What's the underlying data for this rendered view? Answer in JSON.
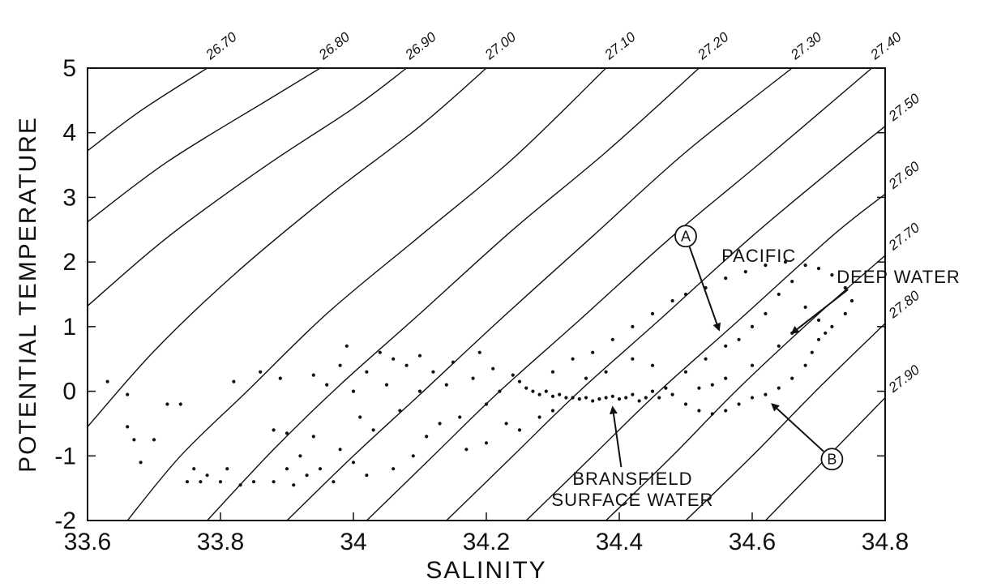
{
  "chart_data": {
    "type": "scatter",
    "title": "",
    "xlabel": "SALINITY",
    "ylabel": "POTENTIAL TEMPERATURE",
    "xlim": [
      33.6,
      34.8
    ],
    "ylim": [
      -2,
      5
    ],
    "x_ticks": [
      {
        "value": 33.6,
        "label": "33.6"
      },
      {
        "value": 33.8,
        "label": "33.8"
      },
      {
        "value": 34.0,
        "label": "34"
      },
      {
        "value": 34.2,
        "label": "34.2"
      },
      {
        "value": 34.4,
        "label": "34.4"
      },
      {
        "value": 34.6,
        "label": "34.6"
      },
      {
        "value": 34.8,
        "label": "34.8"
      }
    ],
    "y_ticks": [
      {
        "value": -2,
        "label": "-2"
      },
      {
        "value": -1,
        "label": "-1"
      },
      {
        "value": 0,
        "label": "0"
      },
      {
        "value": 1,
        "label": "1"
      },
      {
        "value": 2,
        "label": "2"
      },
      {
        "value": 3,
        "label": "3"
      },
      {
        "value": 4,
        "label": "4"
      },
      {
        "value": 5,
        "label": "5"
      }
    ],
    "density_contours": [
      {
        "label": "26.70",
        "points": [
          [
            33.6,
            3.72
          ],
          [
            33.68,
            4.34
          ],
          [
            33.78,
            5.0
          ]
        ]
      },
      {
        "label": "26.80",
        "points": [
          [
            33.6,
            2.62
          ],
          [
            33.72,
            3.55
          ],
          [
            33.87,
            4.5
          ],
          [
            33.95,
            5.0
          ]
        ]
      },
      {
        "label": "26.90",
        "points": [
          [
            33.6,
            1.32
          ],
          [
            33.72,
            2.38
          ],
          [
            33.87,
            3.5
          ],
          [
            34.0,
            4.38
          ],
          [
            34.08,
            5.0
          ]
        ]
      },
      {
        "label": "27.00",
        "points": [
          [
            33.6,
            -0.55
          ],
          [
            33.7,
            0.62
          ],
          [
            33.82,
            1.8
          ],
          [
            33.96,
            3.0
          ],
          [
            34.1,
            4.1
          ],
          [
            34.2,
            5.0
          ]
        ]
      },
      {
        "label": "27.10",
        "points": [
          [
            33.66,
            -2.0
          ],
          [
            33.74,
            -1.0
          ],
          [
            33.84,
            0.0
          ],
          [
            33.96,
            1.2
          ],
          [
            34.1,
            2.4
          ],
          [
            34.24,
            3.6
          ],
          [
            34.38,
            5.0
          ]
        ]
      },
      {
        "label": "27.20",
        "points": [
          [
            33.78,
            -2.0
          ],
          [
            33.88,
            -0.9
          ],
          [
            33.98,
            0.1
          ],
          [
            34.1,
            1.2
          ],
          [
            34.24,
            2.5
          ],
          [
            34.38,
            3.7
          ],
          [
            34.52,
            5.0
          ]
        ]
      },
      {
        "label": "27.30",
        "points": [
          [
            33.9,
            -2.0
          ],
          [
            34.0,
            -1.0
          ],
          [
            34.1,
            -0.05
          ],
          [
            34.22,
            1.1
          ],
          [
            34.36,
            2.4
          ],
          [
            34.5,
            3.7
          ],
          [
            34.66,
            5.0
          ]
        ]
      },
      {
        "label": "27.40",
        "points": [
          [
            34.02,
            -2.0
          ],
          [
            34.12,
            -1.0
          ],
          [
            34.22,
            0.0
          ],
          [
            34.34,
            1.1
          ],
          [
            34.48,
            2.4
          ],
          [
            34.62,
            3.6
          ],
          [
            34.78,
            5.0
          ]
        ]
      },
      {
        "label": "27.50",
        "points": [
          [
            34.14,
            -2.0
          ],
          [
            34.24,
            -1.0
          ],
          [
            34.34,
            0.0
          ],
          [
            34.46,
            1.1
          ],
          [
            34.6,
            2.4
          ],
          [
            34.74,
            3.6
          ],
          [
            34.8,
            4.1
          ]
        ]
      },
      {
        "label": "27.60",
        "points": [
          [
            34.26,
            -2.0
          ],
          [
            34.36,
            -1.0
          ],
          [
            34.46,
            0.0
          ],
          [
            34.58,
            1.1
          ],
          [
            34.72,
            2.4
          ],
          [
            34.8,
            3.05
          ]
        ]
      },
      {
        "label": "27.70",
        "points": [
          [
            34.38,
            -2.0
          ],
          [
            34.48,
            -1.0
          ],
          [
            34.58,
            0.05
          ],
          [
            34.7,
            1.2
          ],
          [
            34.8,
            2.1
          ]
        ]
      },
      {
        "label": "27.80",
        "points": [
          [
            34.5,
            -2.0
          ],
          [
            34.6,
            -1.0
          ],
          [
            34.7,
            0.05
          ],
          [
            34.8,
            1.05
          ]
        ]
      },
      {
        "label": "27.90",
        "points": [
          [
            34.62,
            -2.0
          ],
          [
            34.71,
            -1.05
          ],
          [
            34.8,
            -0.1
          ]
        ]
      }
    ],
    "series": [
      {
        "points": [
          [
            33.63,
            0.15
          ],
          [
            33.66,
            -0.05
          ],
          [
            33.66,
            -0.55
          ],
          [
            33.67,
            -0.75
          ],
          [
            33.68,
            -1.1
          ],
          [
            33.7,
            -0.75
          ],
          [
            33.72,
            -0.2
          ],
          [
            33.74,
            -0.2
          ],
          [
            33.75,
            -1.4
          ],
          [
            33.76,
            -1.2
          ],
          [
            33.77,
            -1.4
          ],
          [
            33.78,
            -1.3
          ],
          [
            33.8,
            -1.4
          ],
          [
            33.81,
            -1.2
          ],
          [
            33.82,
            0.15
          ],
          [
            33.83,
            -1.45
          ],
          [
            33.85,
            -1.4
          ],
          [
            33.86,
            0.3
          ],
          [
            33.88,
            -1.4
          ],
          [
            33.88,
            -0.6
          ],
          [
            33.89,
            0.2
          ],
          [
            33.9,
            -1.2
          ],
          [
            33.9,
            -0.65
          ],
          [
            33.91,
            -1.45
          ],
          [
            33.92,
            -1.0
          ],
          [
            33.93,
            -1.3
          ],
          [
            33.94,
            0.25
          ],
          [
            33.94,
            -0.7
          ],
          [
            33.95,
            -1.2
          ],
          [
            33.96,
            0.1
          ],
          [
            33.97,
            -1.4
          ],
          [
            33.98,
            0.4
          ],
          [
            33.98,
            -0.9
          ],
          [
            33.99,
            0.7
          ],
          [
            34.0,
            0.0
          ],
          [
            34.0,
            -1.1
          ],
          [
            34.01,
            -0.4
          ],
          [
            34.02,
            0.3
          ],
          [
            34.02,
            -1.3
          ],
          [
            34.03,
            -0.6
          ],
          [
            34.04,
            0.6
          ],
          [
            34.05,
            0.1
          ],
          [
            34.06,
            -1.2
          ],
          [
            34.06,
            0.5
          ],
          [
            34.07,
            -0.3
          ],
          [
            34.08,
            0.4
          ],
          [
            34.09,
            -1.0
          ],
          [
            34.1,
            0.0
          ],
          [
            34.1,
            0.55
          ],
          [
            34.11,
            -0.7
          ],
          [
            34.12,
            0.3
          ],
          [
            34.13,
            -0.5
          ],
          [
            34.14,
            0.1
          ],
          [
            34.15,
            0.45
          ],
          [
            34.16,
            -0.4
          ],
          [
            34.17,
            -0.9
          ],
          [
            34.18,
            0.2
          ],
          [
            34.19,
            0.6
          ],
          [
            34.2,
            -0.2
          ],
          [
            34.2,
            -0.8
          ],
          [
            34.21,
            0.35
          ],
          [
            34.22,
            0.0
          ],
          [
            34.23,
            -0.5
          ],
          [
            34.24,
            0.25
          ],
          [
            34.25,
            0.15
          ],
          [
            34.26,
            0.05
          ],
          [
            34.27,
            0.0
          ],
          [
            34.28,
            -0.05
          ],
          [
            34.29,
            0.0
          ],
          [
            34.3,
            -0.08
          ],
          [
            34.31,
            -0.05
          ],
          [
            34.32,
            -0.1
          ],
          [
            34.33,
            -0.1
          ],
          [
            34.34,
            -0.12
          ],
          [
            34.35,
            -0.1
          ],
          [
            34.36,
            -0.15
          ],
          [
            34.37,
            -0.12
          ],
          [
            34.38,
            -0.1
          ],
          [
            34.39,
            -0.08
          ],
          [
            34.4,
            -0.12
          ],
          [
            34.41,
            -0.1
          ],
          [
            34.42,
            -0.05
          ],
          [
            34.43,
            -0.15
          ],
          [
            34.44,
            -0.1
          ],
          [
            34.45,
            0.0
          ],
          [
            34.46,
            -0.1
          ],
          [
            34.47,
            0.05
          ],
          [
            34.48,
            -0.05
          ],
          [
            34.3,
            0.3
          ],
          [
            34.33,
            0.5
          ],
          [
            34.36,
            0.6
          ],
          [
            34.39,
            0.8
          ],
          [
            34.42,
            1.0
          ],
          [
            34.45,
            1.2
          ],
          [
            34.48,
            1.4
          ],
          [
            34.5,
            1.5
          ],
          [
            34.53,
            1.6
          ],
          [
            34.56,
            1.75
          ],
          [
            34.59,
            1.85
          ],
          [
            34.62,
            1.95
          ],
          [
            34.65,
            2.0
          ],
          [
            34.68,
            1.95
          ],
          [
            34.7,
            1.9
          ],
          [
            34.72,
            1.8
          ],
          [
            34.74,
            1.6
          ],
          [
            34.75,
            1.4
          ],
          [
            34.74,
            1.2
          ],
          [
            34.72,
            1.0
          ],
          [
            34.7,
            0.8
          ],
          [
            34.69,
            0.6
          ],
          [
            34.68,
            0.4
          ],
          [
            34.66,
            0.2
          ],
          [
            34.64,
            0.05
          ],
          [
            34.62,
            -0.05
          ],
          [
            34.6,
            -0.1
          ],
          [
            34.58,
            -0.2
          ],
          [
            34.56,
            -0.3
          ],
          [
            34.54,
            -0.35
          ],
          [
            34.52,
            -0.3
          ],
          [
            34.5,
            -0.2
          ],
          [
            34.5,
            0.3
          ],
          [
            34.53,
            0.5
          ],
          [
            34.56,
            0.7
          ],
          [
            34.58,
            0.8
          ],
          [
            34.6,
            1.0
          ],
          [
            34.62,
            1.2
          ],
          [
            34.64,
            1.5
          ],
          [
            34.66,
            1.7
          ],
          [
            34.68,
            1.3
          ],
          [
            34.7,
            1.1
          ],
          [
            34.71,
            0.9
          ],
          [
            34.66,
            0.9
          ],
          [
            34.64,
            0.7
          ],
          [
            34.6,
            0.4
          ],
          [
            34.56,
            0.2
          ],
          [
            34.54,
            0.1
          ],
          [
            34.52,
            0.05
          ],
          [
            34.45,
            0.4
          ],
          [
            34.42,
            0.5
          ],
          [
            34.38,
            0.3
          ],
          [
            34.35,
            0.2
          ],
          [
            34.28,
            -0.4
          ],
          [
            34.25,
            -0.6
          ],
          [
            34.3,
            -0.3
          ]
        ]
      }
    ],
    "annotations": [
      {
        "id": "A",
        "label": "A",
        "x": 34.5,
        "y": 2.4,
        "arrow_to": [
          34.55,
          0.95
        ]
      },
      {
        "id": "B",
        "label": "B",
        "x": 34.72,
        "y": -1.05,
        "arrow_to": [
          34.63,
          -0.2
        ]
      },
      {
        "id": "pacific-deep-water",
        "lines": [
          "PACIFIC",
          "DEEP WATER"
        ],
        "x": 34.61,
        "y": 1.9,
        "arrow_to": [
          34.66,
          0.9
        ]
      },
      {
        "id": "bransfield-surface-water",
        "lines": [
          "BRANSFIELD",
          "SURFACE WATER"
        ],
        "x": 34.42,
        "y": -1.45,
        "arrow_to": [
          34.39,
          -0.25
        ]
      }
    ],
    "grid": false,
    "legend": "none"
  }
}
